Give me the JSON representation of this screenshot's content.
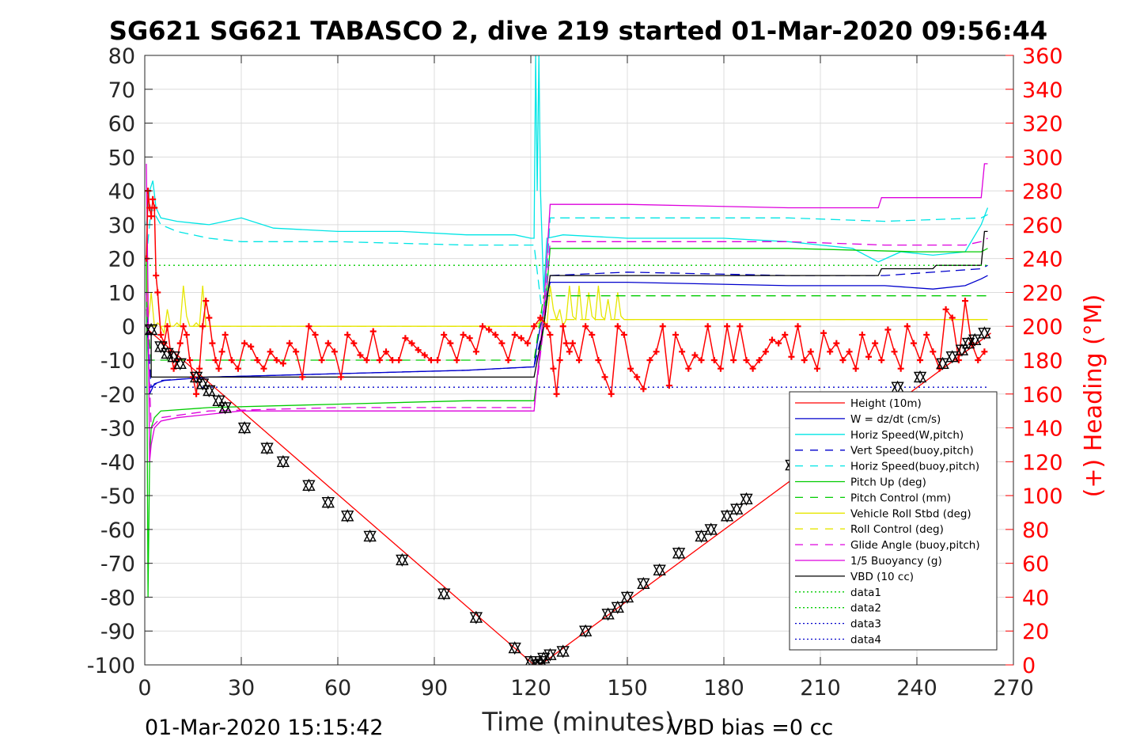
{
  "chart_data": {
    "type": "line",
    "title": "SG621 SG621 TABASCO 2, dive 219 started 01-Mar-2020 09:56:44",
    "xlabel": "Time (minutes)",
    "ylabel_right": "(+) Heading (°M)",
    "xlim": [
      0,
      270
    ],
    "ylim_left": [
      -100,
      80
    ],
    "ylim_right": [
      0,
      360
    ],
    "x_ticks": [
      "0",
      "30",
      "60",
      "90",
      "120",
      "150",
      "180",
      "210",
      "240",
      "270"
    ],
    "y_ticks_left": [
      "80",
      "70",
      "60",
      "50",
      "40",
      "30",
      "20",
      "10",
      "0",
      "-10",
      "-20",
      "-30",
      "-40",
      "-50",
      "-60",
      "-70",
      "-80",
      "-90",
      "-100"
    ],
    "y_ticks_right": [
      "360",
      "340",
      "320",
      "300",
      "280",
      "260",
      "240",
      "220",
      "200",
      "180",
      "160",
      "140",
      "120",
      "100",
      "80",
      "60",
      "40",
      "20",
      "0"
    ],
    "grid": true,
    "footer_left": "01-Mar-2020 15:15:42",
    "footer_right": "VBD bias =0 cc",
    "legend_position": "bottom-right",
    "legend": [
      {
        "label": "Height (10m)",
        "color": "#ff0000",
        "dash": "solid"
      },
      {
        "label": "W = dz/dt (cm/s)",
        "color": "#0000cc",
        "dash": "solid"
      },
      {
        "label": "Horiz Speed(W,pitch)",
        "color": "#00e5e5",
        "dash": "solid"
      },
      {
        "label": "Vert Speed(buoy,pitch)",
        "color": "#0000cc",
        "dash": "dashed"
      },
      {
        "label": "Horiz Speed(buoy,pitch)",
        "color": "#00e5e5",
        "dash": "dashed"
      },
      {
        "label": "Pitch Up (deg)",
        "color": "#00cc00",
        "dash": "solid"
      },
      {
        "label": "Pitch Control (mm)",
        "color": "#00cc00",
        "dash": "dashed"
      },
      {
        "label": "Vehicle Roll Stbd (deg)",
        "color": "#e6e600",
        "dash": "solid"
      },
      {
        "label": "Roll Control (deg)",
        "color": "#e6e600",
        "dash": "dashed"
      },
      {
        "label": "Glide Angle (buoy,pitch)",
        "color": "#dd00dd",
        "dash": "dashed"
      },
      {
        "label": "1/5 Buoyancy (g)",
        "color": "#dd00dd",
        "dash": "solid"
      },
      {
        "label": "VBD (10 cc)",
        "color": "#000000",
        "dash": "solid"
      },
      {
        "label": "data1",
        "color": "#00cc00",
        "dash": "dotted"
      },
      {
        "label": "data2",
        "color": "#00cc00",
        "dash": "dotted"
      },
      {
        "label": "data3",
        "color": "#0000cc",
        "dash": "dotted"
      },
      {
        "label": "data4",
        "color": "#0000cc",
        "dash": "dotted"
      }
    ],
    "series": [
      {
        "name": "Height (10m)",
        "color": "#ff0000",
        "dash": "solid",
        "x": [
          1,
          121,
          123,
          263
        ],
        "y": [
          -1,
          -100,
          -100,
          -2
        ]
      },
      {
        "name": "W = dz/dt (cm/s)",
        "color": "#0000cc",
        "dash": "solid",
        "x": [
          0.5,
          1.5,
          3,
          6,
          20,
          60,
          100,
          120,
          121,
          122,
          123,
          124,
          126,
          150,
          200,
          230,
          245,
          255,
          260,
          262
        ],
        "y": [
          10,
          -20,
          -17,
          -16,
          -15,
          -14,
          -13,
          -12,
          -12,
          -5,
          0,
          5,
          13,
          13,
          12,
          12,
          11,
          12,
          14,
          15
        ]
      },
      {
        "name": "Horiz Speed(W,pitch)",
        "color": "#00e5e5",
        "dash": "solid",
        "x": [
          0.5,
          1.5,
          2.5,
          3.5,
          5,
          10,
          20,
          30,
          40,
          60,
          80,
          100,
          115,
          120,
          121,
          121.5,
          122,
          122.5,
          123,
          124,
          125,
          130,
          150,
          180,
          200,
          220,
          228,
          235,
          245,
          255,
          260,
          262
        ],
        "y": [
          30,
          40,
          43,
          35,
          32,
          31,
          30,
          32,
          29,
          28,
          28,
          27,
          27,
          26,
          26,
          80,
          40,
          80,
          40,
          10,
          26,
          27,
          26,
          26,
          25,
          23,
          19,
          22,
          21,
          22,
          30,
          35
        ]
      },
      {
        "name": "Vert Speed(buoy,pitch)",
        "color": "#0000cc",
        "dash": "dashed",
        "x": [
          0.5,
          2,
          5,
          20,
          60,
          100,
          120,
          121,
          124,
          126,
          150,
          200,
          230,
          260,
          262
        ],
        "y": [
          5,
          -18,
          -16,
          -15,
          -14,
          -13,
          -12,
          -12,
          0,
          15,
          16,
          15,
          15,
          17,
          18
        ]
      },
      {
        "name": "Horiz Speed(buoy,pitch)",
        "color": "#00e5e5",
        "dash": "dashed",
        "x": [
          0.5,
          2,
          5,
          10,
          20,
          30,
          60,
          100,
          120,
          121,
          124,
          126,
          150,
          200,
          230,
          260,
          262
        ],
        "y": [
          20,
          35,
          30,
          28,
          26,
          25,
          25,
          24,
          24,
          24,
          0,
          32,
          32,
          32,
          31,
          32,
          33
        ]
      },
      {
        "name": "Pitch Up (deg)",
        "color": "#00cc00",
        "dash": "solid",
        "x": [
          0.5,
          1,
          1.5,
          2,
          3,
          5,
          20,
          60,
          100,
          120,
          121,
          124,
          126,
          150,
          200,
          240,
          255,
          260,
          262
        ],
        "y": [
          20,
          -80,
          -40,
          -30,
          -27,
          -25,
          -24,
          -23,
          -22,
          -22,
          -22,
          0,
          23,
          23,
          23,
          22,
          22,
          22,
          23
        ]
      },
      {
        "name": "Pitch Control (mm)",
        "color": "#00cc00",
        "dash": "dashed",
        "x": [
          0.5,
          2,
          120,
          121,
          124,
          262
        ],
        "y": [
          5,
          -10,
          -10,
          -10,
          9,
          9
        ]
      },
      {
        "name": "Roll Control (deg)",
        "color": "#e6e600",
        "dash": "dashed",
        "x": [
          0.5,
          120,
          121,
          124,
          262
        ],
        "y": [
          0,
          0,
          0,
          2,
          2
        ]
      },
      {
        "name": "Glide Angle (buoy,pitch)",
        "color": "#dd00dd",
        "dash": "dashed",
        "x": [
          0.5,
          2,
          5,
          20,
          60,
          100,
          120,
          121,
          124,
          126,
          150,
          200,
          230,
          255,
          260,
          262
        ],
        "y": [
          10,
          -30,
          -27,
          -25,
          -24,
          -24,
          -24,
          -24,
          0,
          25,
          25,
          25,
          24,
          24,
          25,
          26
        ]
      },
      {
        "name": "1/5 Buoyancy (g)",
        "color": "#dd00dd",
        "dash": "solid",
        "x": [
          0.5,
          1,
          1.5,
          2,
          3,
          5,
          10,
          20,
          30,
          60,
          90,
          120,
          121,
          124,
          126,
          150,
          200,
          228,
          229,
          240,
          241,
          260,
          261,
          262
        ],
        "y": [
          48,
          10,
          -40,
          -35,
          -30,
          -28,
          -27,
          -26,
          -25,
          -25,
          -25,
          -25,
          -25,
          5,
          36,
          36,
          35,
          35,
          38,
          38,
          38,
          38,
          48,
          48
        ]
      },
      {
        "name": "VBD (10 cc)",
        "color": "#000000",
        "dash": "solid",
        "x": [
          0.5,
          2,
          2,
          120,
          121,
          124,
          126,
          228,
          229,
          245,
          246,
          260,
          261,
          262
        ],
        "y": [
          -2,
          -2,
          -15,
          -15,
          -15,
          0,
          15,
          15,
          17,
          17,
          18,
          18,
          28,
          28
        ]
      },
      {
        "name": "data1",
        "color": "#00cc00",
        "dash": "dotted",
        "x": [
          0,
          262
        ],
        "y": [
          18,
          18
        ]
      },
      {
        "name": "data3",
        "color": "#0000cc",
        "dash": "dotted",
        "x": [
          0,
          262
        ],
        "y": [
          -18,
          -18
        ]
      }
    ],
    "depth_markers": {
      "name": "Height (10m) triangles",
      "color": "#000000",
      "x": [
        2,
        5,
        7,
        9,
        11,
        16,
        18,
        20,
        23,
        25,
        31,
        38,
        43,
        51,
        57,
        63,
        70,
        80,
        93,
        103,
        115,
        120,
        122,
        123,
        124,
        126,
        130,
        137,
        144,
        147,
        150,
        155,
        160,
        166,
        173,
        176,
        181,
        184,
        187,
        201,
        234,
        241,
        248,
        251,
        254,
        256,
        258,
        261
      ],
      "y": [
        -1,
        -6,
        -8,
        -9,
        -11,
        -15,
        -17,
        -19,
        -22,
        -24,
        -30,
        -36,
        -40,
        -47,
        -52,
        -56,
        -62,
        -69,
        -79,
        -86,
        -95,
        -99,
        -100,
        -99,
        -98,
        -97,
        -96,
        -90,
        -85,
        -83,
        -80,
        -76,
        -72,
        -67,
        -62,
        -60,
        -56,
        -54,
        -51,
        -41,
        -18,
        -15,
        -11,
        -9,
        -7,
        -5,
        -4,
        -2
      ]
    },
    "vehicle_roll": {
      "name": "Vehicle Roll Stbd (deg)",
      "color": "#e6e600",
      "x": [
        0.5,
        1,
        1.5,
        2,
        3,
        4,
        5,
        6,
        7,
        8,
        9,
        10,
        11,
        12,
        13,
        14,
        15,
        16,
        17,
        18,
        19,
        20,
        22,
        24,
        26,
        28,
        30,
        32,
        40,
        50,
        60,
        70,
        80,
        90,
        100,
        110,
        115,
        120,
        121,
        122,
        123,
        124,
        125,
        126,
        127,
        128,
        129,
        130,
        131,
        132,
        133,
        134,
        135,
        136,
        137,
        138,
        139,
        140,
        141,
        142,
        143,
        144,
        145,
        146,
        147,
        148,
        149,
        150,
        155,
        160,
        165,
        170,
        175,
        180,
        185,
        190,
        195,
        200,
        205,
        210,
        215,
        220,
        225,
        230,
        235,
        240,
        245,
        250,
        255,
        258,
        260,
        262
      ],
      "y": [
        20,
        2,
        5,
        10,
        0,
        1,
        0,
        -2,
        5,
        0,
        0,
        1,
        0,
        12,
        3,
        0,
        0,
        1,
        0,
        12,
        0,
        0,
        0,
        0,
        0,
        0,
        0,
        0,
        0,
        0,
        0,
        0,
        0,
        0,
        0,
        0,
        0,
        0,
        0,
        0,
        0,
        2,
        0,
        12,
        5,
        2,
        5,
        0,
        2,
        12,
        3,
        2,
        12,
        2,
        2,
        10,
        3,
        2,
        12,
        3,
        2,
        8,
        2,
        2,
        10,
        3,
        2,
        2,
        2,
        2,
        2,
        2,
        2,
        2,
        2,
        2,
        2,
        2,
        2,
        2,
        2,
        2,
        2,
        2,
        2,
        2,
        2,
        2,
        2,
        2,
        2,
        2
      ]
    },
    "heading": {
      "name": "Heading (°M)",
      "axis": "right",
      "color": "#ff0000",
      "marker": "+",
      "x": [
        0.5,
        1,
        1.5,
        2,
        2.5,
        3,
        3.5,
        4,
        5,
        6,
        7,
        8,
        9,
        10,
        11,
        12,
        13,
        14,
        15,
        16,
        17,
        18,
        19,
        20,
        21,
        22,
        23,
        24,
        25,
        27,
        29,
        31,
        33,
        35,
        37,
        39,
        41,
        43,
        45,
        47,
        49,
        51,
        53,
        55,
        57,
        59,
        61,
        63,
        65,
        67,
        69,
        71,
        73,
        75,
        77,
        79,
        81,
        83,
        85,
        87,
        89,
        91,
        93,
        95,
        97,
        99,
        101,
        103,
        105,
        107,
        109,
        111,
        113,
        115,
        117,
        119,
        121,
        123,
        125,
        126,
        127,
        128,
        129,
        130,
        131,
        132,
        133,
        135,
        137,
        139,
        141,
        143,
        145,
        147,
        149,
        151,
        153,
        155,
        157,
        159,
        161,
        163,
        165,
        167,
        169,
        171,
        173,
        175,
        177,
        179,
        181,
        183,
        185,
        187,
        189,
        191,
        193,
        195,
        197,
        199,
        201,
        203,
        205,
        207,
        209,
        211,
        213,
        215,
        217,
        219,
        221,
        223,
        225,
        227,
        229,
        231,
        233,
        235,
        237,
        239,
        241,
        243,
        245,
        247,
        249,
        251,
        253,
        255,
        257,
        259,
        261
      ],
      "y": [
        240,
        280,
        270,
        265,
        275,
        270,
        230,
        220,
        195,
        190,
        200,
        185,
        175,
        180,
        190,
        200,
        195,
        180,
        170,
        160,
        175,
        200,
        215,
        205,
        190,
        180,
        175,
        185,
        195,
        180,
        175,
        190,
        188,
        180,
        175,
        185,
        180,
        178,
        190,
        185,
        170,
        200,
        195,
        180,
        190,
        185,
        170,
        195,
        190,
        183,
        180,
        197,
        180,
        185,
        180,
        180,
        193,
        190,
        186,
        183,
        180,
        180,
        195,
        190,
        180,
        195,
        193,
        185,
        200,
        198,
        195,
        190,
        180,
        195,
        193,
        190,
        200,
        205,
        200,
        195,
        175,
        160,
        180,
        200,
        190,
        185,
        190,
        180,
        200,
        195,
        180,
        170,
        160,
        200,
        195,
        175,
        170,
        163,
        180,
        185,
        200,
        165,
        195,
        185,
        175,
        183,
        180,
        200,
        180,
        175,
        200,
        180,
        200,
        180,
        175,
        180,
        185,
        192,
        190,
        195,
        182,
        200,
        180,
        185,
        175,
        196,
        185,
        190,
        180,
        185,
        175,
        195,
        182,
        190,
        180,
        198,
        185,
        175,
        200,
        190,
        180,
        195,
        185,
        175,
        210,
        205,
        180,
        215,
        190,
        180,
        185
      ]
    }
  }
}
